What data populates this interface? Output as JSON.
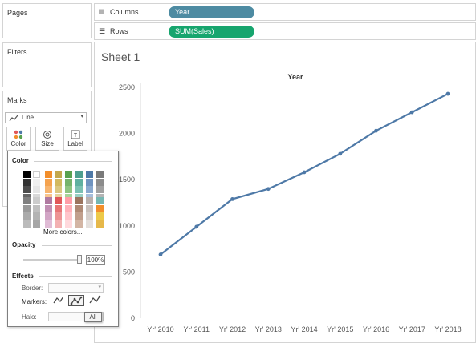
{
  "left_panels": {
    "pages": "Pages",
    "filters": "Filters",
    "marks": "Marks"
  },
  "marks": {
    "type": "Line",
    "buttons": {
      "color": "Color",
      "size": "Size",
      "label": "Label"
    }
  },
  "shelves": {
    "columns": {
      "label": "Columns",
      "pill": "Year"
    },
    "rows": {
      "label": "Rows",
      "pill": "SUM(Sales)"
    }
  },
  "color_popup": {
    "color_title": "Color",
    "more_colors": "More colors...",
    "opacity_title": "Opacity",
    "opacity_value": "100%",
    "opacity_fraction": 1.0,
    "effects_title": "Effects",
    "border_label": "Border:",
    "markers_label": "Markers:",
    "halo_label": "Halo:",
    "tooltip": "All",
    "palette_top": [
      [
        "#000000",
        "#ffffff",
        "#f28e2b",
        "#c4a84d",
        "#59a14f",
        "#4e9f8f",
        "#4e79a7",
        "#7a7a7a"
      ],
      [
        "#333333",
        "#f0f0f0",
        "#f5a34f",
        "#d3b95f",
        "#76b36c",
        "#5fb0a0",
        "#6f93c0",
        "#8c8c8c"
      ],
      [
        "#4d4d4d",
        "#e6e6e6",
        "#f7b56f",
        "#dbc780",
        "#8ec482",
        "#7cc1b3",
        "#8aa9cf",
        "#a0a0a0"
      ],
      [
        "#666666",
        "#d9d9d9",
        "#f9c58d",
        "#e5d49e",
        "#a8d39b",
        "#9ad1c4",
        "#a6bedc",
        "#b4b4b4"
      ]
    ],
    "palette_bottom": [
      [
        "#808080",
        "#cccccc",
        "#b07aa1",
        "#e15759",
        "#ff9da7",
        "#9c755f",
        "#bab0ac",
        "#76b7b2"
      ],
      [
        "#999999",
        "#bfbfbf",
        "#c18fb3",
        "#e77577",
        "#ffb1b9",
        "#af8a75",
        "#c8c0bb",
        "#f28e2b"
      ],
      [
        "#aaaaaa",
        "#b3b3b3",
        "#d2a5c5",
        "#ed9394",
        "#ffc5cb",
        "#c19f8c",
        "#d6cfcb",
        "#edc948"
      ],
      [
        "#bbbbbb",
        "#a6a6a6",
        "#e0bcd6",
        "#f3b1b2",
        "#ffd9dd",
        "#d3b5a4",
        "#e4dfdc",
        "#e6b84a"
      ]
    ]
  },
  "sheet": {
    "title": "Sheet 1"
  },
  "chart_data": {
    "type": "line",
    "title": "Year",
    "categories": [
      "Yr' 2010",
      "Yr' 2011",
      "Yr' 2012",
      "Yr' 2013",
      "Yr' 2014",
      "Yr' 2015",
      "Yr' 2016",
      "Yr' 2017",
      "Yr' 2018"
    ],
    "series": [
      {
        "values": [
          690,
          990,
          1290,
          1400,
          1580,
          1780,
          2030,
          2230,
          2430
        ]
      }
    ],
    "yticks": [
      0,
      500,
      1000,
      1500,
      2000,
      2500
    ],
    "ylim": [
      0,
      2500
    ],
    "grid": false,
    "line_color": "#4e79a7"
  }
}
